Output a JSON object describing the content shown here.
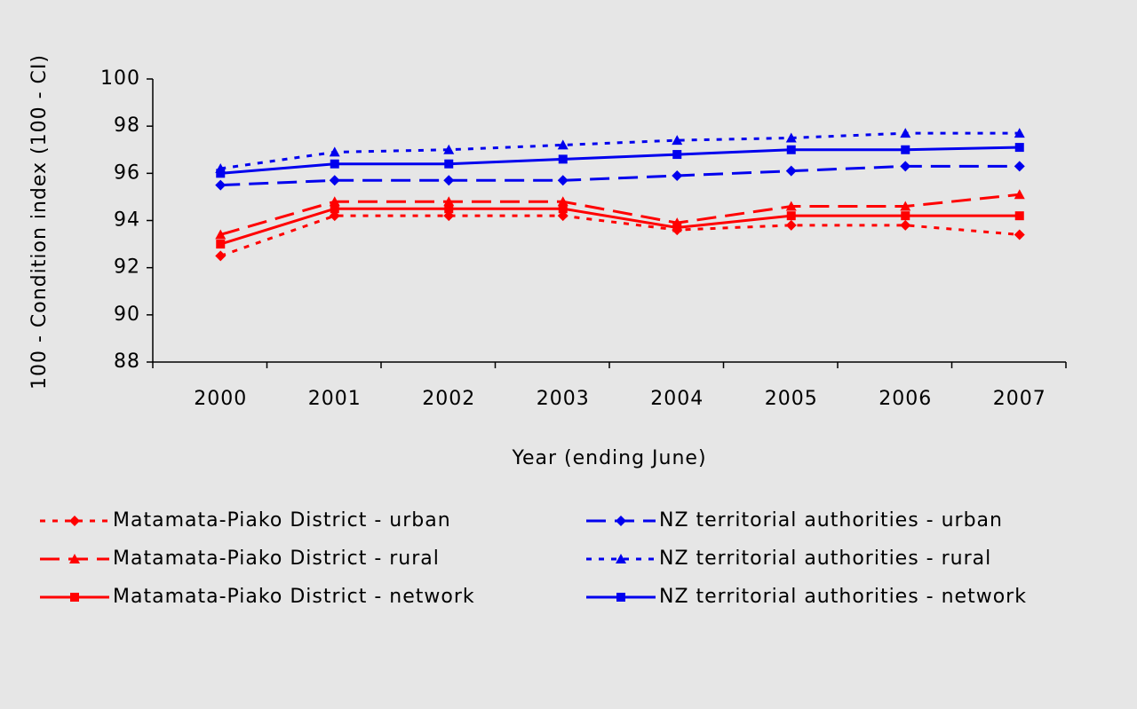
{
  "chart_data": {
    "type": "line",
    "x_label": "Year (ending June)",
    "y_label": "100 - Condition index (100 - CI)",
    "categories": [
      "2000",
      "2001",
      "2002",
      "2003",
      "2004",
      "2005",
      "2006",
      "2007"
    ],
    "ylim": [
      88,
      100
    ],
    "yticks": [
      88,
      90,
      92,
      94,
      96,
      98,
      100
    ],
    "series": [
      {
        "name": "Matamata-Piako District - urban",
        "color": "#ff0000",
        "dash": "short",
        "marker": "diamond",
        "values": [
          92.5,
          94.2,
          94.2,
          94.2,
          93.6,
          93.8,
          93.8,
          93.4
        ]
      },
      {
        "name": "Matamata-Piako District - rural",
        "color": "#ff0000",
        "dash": "long",
        "marker": "triangle",
        "values": [
          93.4,
          94.8,
          94.8,
          94.8,
          93.9,
          94.6,
          94.6,
          95.1
        ]
      },
      {
        "name": "Matamata-Piako District - network",
        "color": "#ff0000",
        "dash": "solid",
        "marker": "square",
        "values": [
          93.0,
          94.5,
          94.5,
          94.5,
          93.7,
          94.2,
          94.2,
          94.2
        ]
      },
      {
        "name": "NZ territorial authorities - urban",
        "color": "#0000ee",
        "dash": "long",
        "marker": "diamond",
        "values": [
          95.5,
          95.7,
          95.7,
          95.7,
          95.9,
          96.1,
          96.3,
          96.3
        ]
      },
      {
        "name": "NZ territorial authorities - rural",
        "color": "#0000ee",
        "dash": "short",
        "marker": "triangle",
        "values": [
          96.2,
          96.9,
          97.0,
          97.2,
          97.4,
          97.5,
          97.7,
          97.7
        ]
      },
      {
        "name": "NZ territorial authorities - network",
        "color": "#0000ee",
        "dash": "solid",
        "marker": "square",
        "values": [
          96.0,
          96.4,
          96.4,
          96.6,
          96.8,
          97.0,
          97.0,
          97.1
        ]
      }
    ]
  }
}
